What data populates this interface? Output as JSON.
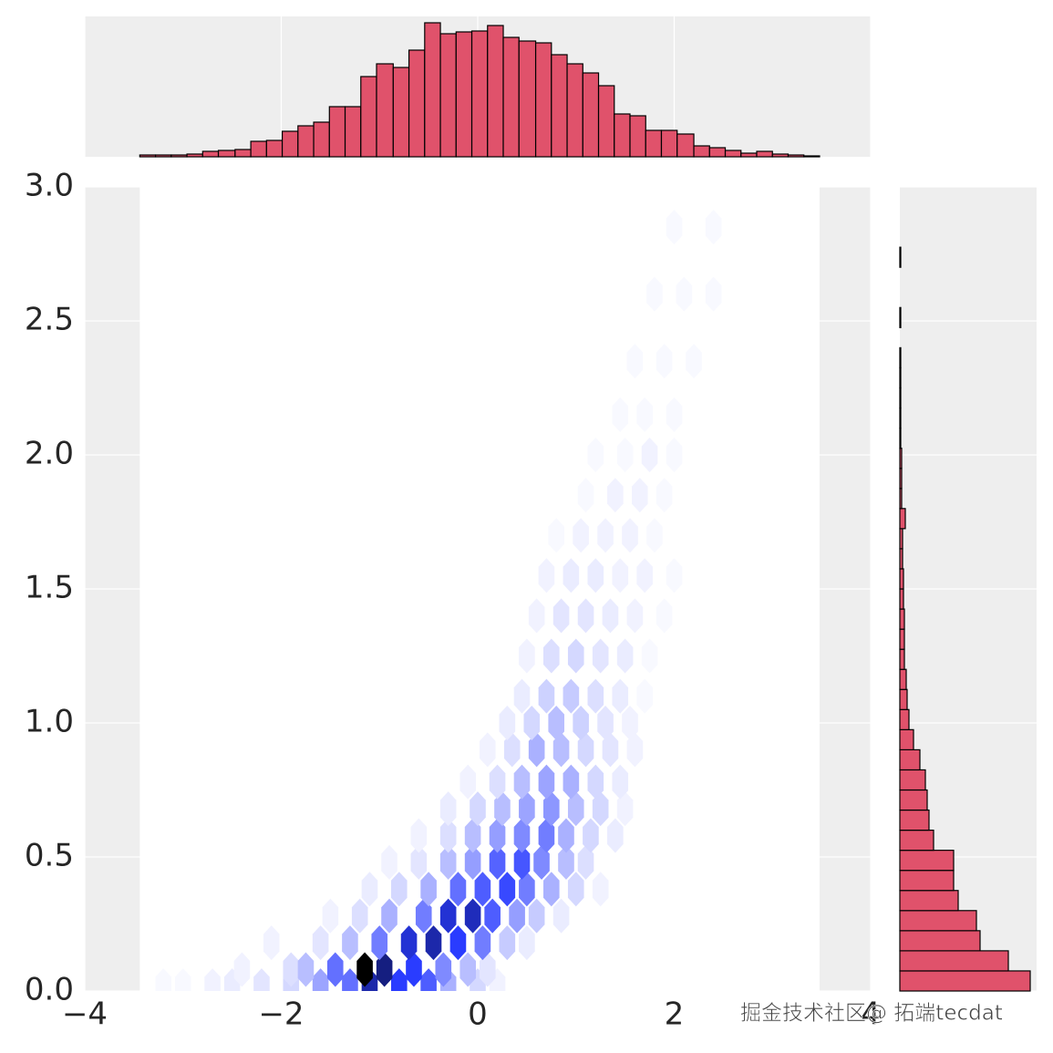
{
  "chart_data": [
    {
      "type": "hexbin",
      "xlim": [
        -4,
        4
      ],
      "ylim": [
        0,
        3
      ],
      "xticks": [
        {
          "value": -4,
          "label": "−4"
        },
        {
          "value": -2,
          "label": "−2"
        },
        0,
        2,
        4
      ],
      "yticks": [
        {
          "value": 0,
          "label": "0.0"
        },
        0.5,
        {
          "value": 1,
          "label": "1.0"
        },
        1.5,
        {
          "value": 2,
          "label": "2.0"
        },
        2.5,
        {
          "value": 3,
          "label": "3.0"
        }
      ],
      "grid": true,
      "cmap": [
        "#ffffff",
        "#2a3cff",
        "#000000"
      ],
      "x": [
        -3.2,
        -3.0,
        -2.7,
        -2.5,
        -2.2,
        -1.9,
        -1.6,
        -1.3,
        -1.1,
        -0.8,
        -0.5,
        -0.3,
        0.0,
        0.2,
        -2.4,
        -1.9,
        -1.75,
        -1.45,
        -1.15,
        -0.95,
        -0.65,
        -0.35,
        -0.1,
        0.1,
        -2.1,
        -1.6,
        -1.3,
        -1.0,
        -0.7,
        -0.45,
        -0.2,
        0.05,
        0.3,
        0.5,
        -1.5,
        -1.2,
        -0.9,
        -0.55,
        -0.3,
        -0.05,
        0.15,
        0.4,
        0.6,
        0.85,
        -1.1,
        -0.8,
        -0.5,
        -0.2,
        0.05,
        0.3,
        0.5,
        0.75,
        1.0,
        1.25,
        -0.9,
        -0.6,
        -0.3,
        -0.05,
        0.2,
        0.45,
        0.65,
        0.9,
        1.1,
        -0.6,
        -0.3,
        -0.05,
        0.2,
        0.45,
        0.7,
        0.9,
        1.15,
        1.4,
        -0.3,
        0.0,
        0.25,
        0.5,
        0.75,
        1.0,
        1.25,
        1.5,
        -0.1,
        0.2,
        0.45,
        0.7,
        0.95,
        1.2,
        1.45,
        0.1,
        0.35,
        0.6,
        0.85,
        1.1,
        1.35,
        1.6,
        0.3,
        0.55,
        0.8,
        1.05,
        1.3,
        1.55,
        0.45,
        0.7,
        0.95,
        1.2,
        1.45,
        1.7,
        0.5,
        0.75,
        1.0,
        1.25,
        1.5,
        1.75,
        0.6,
        0.85,
        1.1,
        1.35,
        1.6,
        1.9,
        0.7,
        0.95,
        1.2,
        1.45,
        1.7,
        2.0,
        0.8,
        1.05,
        1.3,
        1.55,
        1.8,
        1.1,
        1.4,
        1.65,
        1.9,
        1.2,
        1.5,
        1.75,
        2.0,
        1.45,
        1.7,
        2.0,
        1.6,
        1.9,
        2.2,
        1.8,
        2.1,
        2.4,
        2.0,
        2.4
      ],
      "y": [
        0.02,
        0.02,
        0.02,
        0.02,
        0.02,
        0.02,
        0.02,
        0.02,
        0.02,
        0.02,
        0.02,
        0.02,
        0.02,
        0.02,
        0.08,
        0.08,
        0.08,
        0.08,
        0.08,
        0.08,
        0.08,
        0.08,
        0.08,
        0.08,
        0.18,
        0.18,
        0.18,
        0.18,
        0.18,
        0.18,
        0.18,
        0.18,
        0.18,
        0.18,
        0.28,
        0.28,
        0.28,
        0.28,
        0.28,
        0.28,
        0.28,
        0.28,
        0.28,
        0.28,
        0.38,
        0.38,
        0.38,
        0.38,
        0.38,
        0.38,
        0.38,
        0.38,
        0.38,
        0.38,
        0.48,
        0.48,
        0.48,
        0.48,
        0.48,
        0.48,
        0.48,
        0.48,
        0.48,
        0.58,
        0.58,
        0.58,
        0.58,
        0.58,
        0.58,
        0.58,
        0.58,
        0.58,
        0.68,
        0.68,
        0.68,
        0.68,
        0.68,
        0.68,
        0.68,
        0.68,
        0.78,
        0.78,
        0.78,
        0.78,
        0.78,
        0.78,
        0.78,
        0.9,
        0.9,
        0.9,
        0.9,
        0.9,
        0.9,
        0.9,
        1.0,
        1.0,
        1.0,
        1.0,
        1.0,
        1.0,
        1.1,
        1.1,
        1.1,
        1.1,
        1.1,
        1.1,
        1.25,
        1.25,
        1.25,
        1.25,
        1.25,
        1.25,
        1.4,
        1.4,
        1.4,
        1.4,
        1.4,
        1.4,
        1.55,
        1.55,
        1.55,
        1.55,
        1.55,
        1.55,
        1.7,
        1.7,
        1.7,
        1.7,
        1.7,
        1.85,
        1.85,
        1.85,
        1.85,
        2.0,
        2.0,
        2.0,
        2.0,
        2.15,
        2.15,
        2.15,
        2.35,
        2.35,
        2.35,
        2.6,
        2.6,
        2.6,
        2.85,
        2.85
      ],
      "counts": [
        1,
        1,
        2,
        3,
        4,
        6,
        14,
        22,
        40,
        30,
        25,
        12,
        6,
        2,
        2,
        5,
        10,
        22,
        60,
        45,
        30,
        18,
        10,
        4,
        2,
        4,
        10,
        20,
        35,
        40,
        30,
        20,
        8,
        3,
        2,
        5,
        12,
        20,
        35,
        38,
        25,
        15,
        8,
        3,
        3,
        6,
        12,
        22,
        25,
        28,
        20,
        12,
        6,
        2,
        2,
        4,
        10,
        15,
        24,
        26,
        18,
        10,
        5,
        2,
        5,
        10,
        15,
        18,
        20,
        12,
        6,
        3,
        3,
        6,
        10,
        14,
        16,
        10,
        6,
        2,
        2,
        5,
        10,
        14,
        12,
        6,
        3,
        2,
        5,
        12,
        10,
        6,
        4,
        2,
        3,
        6,
        10,
        7,
        4,
        2,
        3,
        7,
        8,
        5,
        3,
        1,
        2,
        5,
        6,
        4,
        3,
        1,
        2,
        4,
        4,
        3,
        2,
        1,
        2,
        3,
        3,
        2,
        2,
        1,
        1,
        2,
        2,
        2,
        1,
        1,
        2,
        2,
        1,
        1,
        1,
        2,
        1,
        1,
        1,
        1,
        1,
        1,
        1,
        1,
        1,
        1,
        1,
        1
      ]
    },
    {
      "type": "histogram",
      "bins": [
        -3.44,
        -3.28,
        -3.12,
        -2.96,
        -2.8,
        -2.64,
        -2.47,
        -2.31,
        -2.15,
        -1.99,
        -1.83,
        -1.67,
        -1.51,
        -1.35,
        -1.19,
        -1.03,
        -0.86,
        -0.7,
        -0.54,
        -0.38,
        -0.22,
        -0.06,
        0.1,
        0.26,
        0.42,
        0.59,
        0.75,
        0.91,
        1.07,
        1.23,
        1.39,
        1.55,
        1.71,
        1.87,
        2.03,
        2.2,
        2.36,
        2.52,
        2.68,
        2.84,
        3.0,
        3.16,
        3.32,
        3.48
      ],
      "values": [
        2,
        2,
        2,
        3,
        6,
        7,
        8,
        17,
        18,
        28,
        34,
        38,
        55,
        55,
        88,
        102,
        98,
        117,
        147,
        135,
        137,
        138,
        144,
        131,
        127,
        125,
        112,
        102,
        92,
        78,
        47,
        45,
        29,
        29,
        25,
        12,
        10,
        7,
        4,
        6,
        3,
        2,
        1
      ],
      "ylim": [
        0,
        154
      ],
      "color": "#e0526b",
      "edgecolor": "#000000"
    },
    {
      "type": "histogram",
      "orientation": "horizontal",
      "bins": [
        0,
        0.075,
        0.15,
        0.225,
        0.3,
        0.375,
        0.45,
        0.525,
        0.6,
        0.675,
        0.75,
        0.825,
        0.9,
        0.975,
        1.05,
        1.125,
        1.2,
        1.275,
        1.35,
        1.425,
        1.5,
        1.575,
        1.65,
        1.725,
        1.8,
        1.875,
        1.95,
        2.025,
        2.1,
        2.175,
        2.25,
        2.325,
        2.4,
        2.475,
        2.55,
        2.625,
        2.7,
        2.775,
        2.85,
        2.925,
        3.0
      ],
      "values": [
        143,
        119,
        88,
        84,
        64,
        59,
        59,
        37,
        32,
        30,
        28,
        22,
        15,
        10,
        8,
        7,
        5,
        5,
        5,
        4,
        4,
        3,
        3,
        6,
        2,
        2,
        2,
        1,
        1,
        1,
        1,
        1,
        0,
        1,
        0,
        0,
        1,
        0,
        0,
        0
      ],
      "xlim": [
        0,
        150
      ],
      "color": "#e0526b",
      "edgecolor": "#000000"
    }
  ],
  "watermark": "掘金技术社区@ 拓端tecdat"
}
